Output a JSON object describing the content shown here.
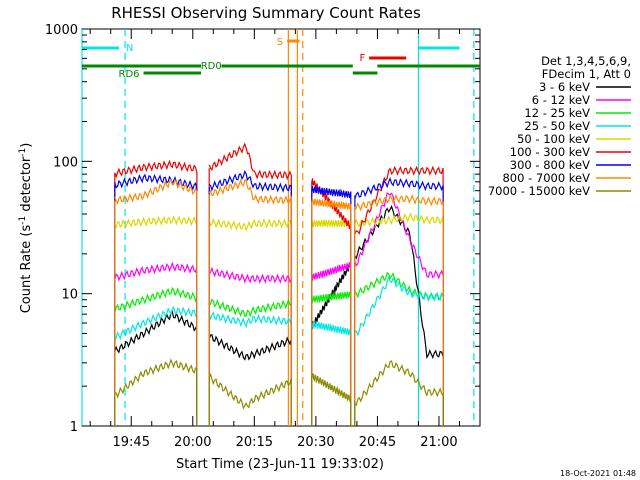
{
  "chart_data": {
    "type": "line",
    "title": "RHESSI Observing Summary Count Rates",
    "xlabel": "Start Time (23-Jun-11 19:33:02)",
    "ylabel_main": "Count Rate (s",
    "ylabel_sup1": "-1",
    "ylabel_mid": " detector",
    "ylabel_sup2": "-1",
    "ylabel_end": ")",
    "y_scale": "log",
    "ylim": [
      1,
      1000
    ],
    "xlim_minutes": [
      0,
      97
    ],
    "x_ticks": [
      {
        "label": "19:45",
        "minutes": 12
      },
      {
        "label": "20:00",
        "minutes": 27
      },
      {
        "label": "20:15",
        "minutes": 42
      },
      {
        "label": "20:30",
        "minutes": 57
      },
      {
        "label": "20:45",
        "minutes": 72
      },
      {
        "label": "21:00",
        "minutes": 87
      }
    ],
    "y_ticks": [
      {
        "label": "1",
        "value": 1
      },
      {
        "label": "10",
        "value": 10
      },
      {
        "label": "100",
        "value": 100
      },
      {
        "label": "1000",
        "value": 1000
      }
    ],
    "legend_position": "right",
    "legend_header": [
      "Det 1,3,4,5,6,9,",
      "FDecim 1, Att 0"
    ],
    "timestamp": "18-Oct-2021 01:48",
    "series": [
      {
        "name": "3 - 6 keV",
        "color": "#000000",
        "values": [
          3.5,
          5,
          7,
          5,
          3.3,
          3.5,
          5,
          20,
          45,
          28,
          3.5
        ]
      },
      {
        "name": "6 - 12 keV",
        "color": "#ff00ff",
        "values": [
          13,
          15,
          16,
          15,
          13,
          13,
          13,
          17,
          60,
          25,
          14
        ]
      },
      {
        "name": "12 - 25 keV",
        "color": "#00ee00",
        "values": [
          7.5,
          9,
          10.5,
          9,
          7,
          7.5,
          9,
          10,
          14,
          10.5,
          9.5
        ]
      },
      {
        "name": "25 - 50 keV",
        "color": "#00e5e5",
        "values": [
          4.5,
          6,
          7.5,
          7,
          6,
          6.5,
          6,
          5,
          13,
          10,
          9.5
        ]
      },
      {
        "name": "50 - 100 keV",
        "color": "#d8d800",
        "values": [
          33,
          35,
          36,
          35,
          32,
          34,
          34,
          34,
          36,
          38,
          36
        ]
      },
      {
        "name": "100 - 300 keV",
        "color": "#ee0000",
        "values": [
          80,
          90,
          95,
          85,
          130,
          80,
          78,
          28,
          85,
          85,
          85
        ]
      },
      {
        "name": "300 - 800 keV",
        "color": "#0000ee",
        "values": [
          65,
          75,
          72,
          62,
          80,
          65,
          62,
          55,
          70,
          68,
          65
        ]
      },
      {
        "name": "800 - 7000 keV",
        "color": "#ff8800",
        "values": [
          50,
          55,
          70,
          55,
          70,
          52,
          50,
          45,
          52,
          52,
          50
        ]
      },
      {
        "name": "7000 - 15000 keV",
        "color": "#8b8b00",
        "values": [
          1.6,
          2.5,
          3,
          2.5,
          1.4,
          1.6,
          2.5,
          1.5,
          3,
          2.5,
          1.8
        ]
      }
    ],
    "series_x_minutes": [
      7,
      15,
      22,
      30,
      40,
      42,
      55,
      67,
      75,
      80,
      84
    ],
    "coverage_bars": [
      {
        "label": "N",
        "color": "#00e5e5",
        "spans": [
          [
            -1,
            9
          ],
          [
            82,
            92
          ]
        ]
      },
      {
        "label": "RD0",
        "color": "#008800",
        "spans": [
          [
            -1,
            29
          ],
          [
            34,
            66
          ],
          [
            72,
            97
          ]
        ]
      },
      {
        "label": "RD6",
        "color": "#008800",
        "spans": [
          [
            15,
            29
          ],
          [
            66,
            72
          ]
        ]
      },
      {
        "label": "S",
        "color": "#ff8800",
        "spans": [
          [
            50,
            53
          ]
        ]
      },
      {
        "label": "F",
        "color": "#ee0000",
        "spans": [
          [
            70,
            79
          ]
        ]
      }
    ],
    "vlines_solid_minutes": [
      {
        "x": 0,
        "color": "#00e5e5"
      },
      {
        "x": 50.3,
        "color": "#ff8800"
      },
      {
        "x": 52.5,
        "color": "#ff8800"
      },
      {
        "x": 82,
        "color": "#00e5e5"
      }
    ],
    "vlines_dashed_minutes": [
      {
        "x": 10.5,
        "color": "#00e5e5"
      },
      {
        "x": 53.8,
        "color": "#ff8800"
      },
      {
        "x": 95.5,
        "color": "#00e5e5"
      }
    ]
  }
}
